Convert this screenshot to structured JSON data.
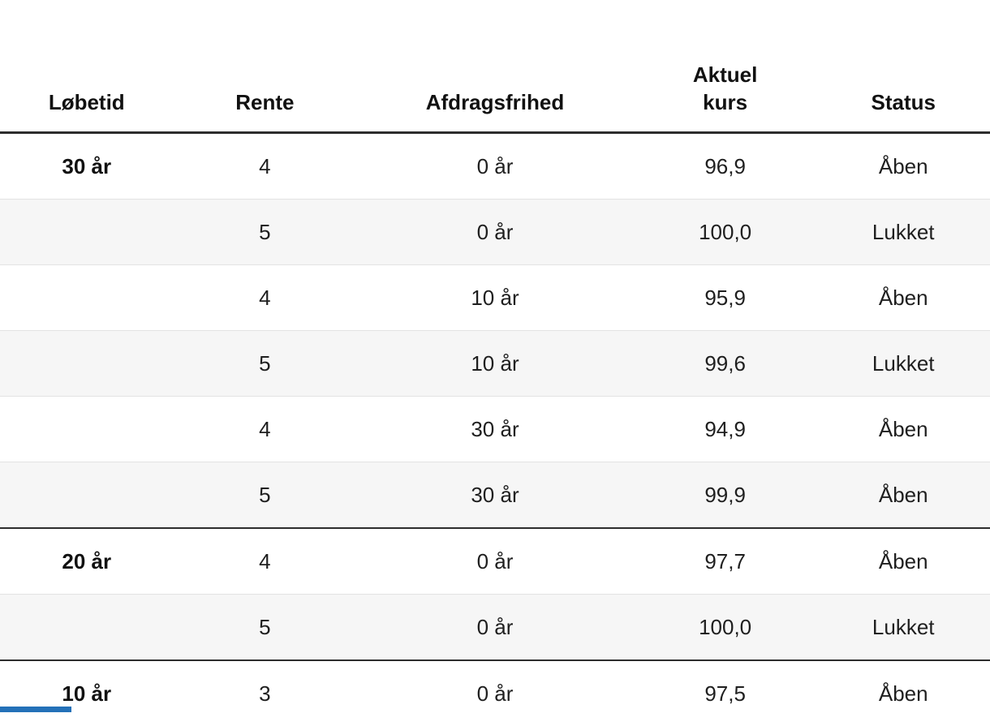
{
  "table": {
    "columns": [
      {
        "key": "lobetid",
        "label": "Løbetid"
      },
      {
        "key": "rente",
        "label": "Rente"
      },
      {
        "key": "afdragsfrihed",
        "label": "Afdragsfrihed"
      },
      {
        "key": "kurs",
        "label": "Aktuel\nkurs"
      },
      {
        "key": "status",
        "label": "Status"
      }
    ],
    "rows": [
      {
        "lobetid": "30 år",
        "rente": "4",
        "afdragsfrihed": "0 år",
        "kurs": "96,9",
        "status": "Åben",
        "group_start": true
      },
      {
        "lobetid": "",
        "rente": "5",
        "afdragsfrihed": "0 år",
        "kurs": "100,0",
        "status": "Lukket",
        "group_start": false
      },
      {
        "lobetid": "",
        "rente": "4",
        "afdragsfrihed": "10 år",
        "kurs": "95,9",
        "status": "Åben",
        "group_start": false
      },
      {
        "lobetid": "",
        "rente": "5",
        "afdragsfrihed": "10 år",
        "kurs": "99,6",
        "status": "Lukket",
        "group_start": false
      },
      {
        "lobetid": "",
        "rente": "4",
        "afdragsfrihed": "30 år",
        "kurs": "94,9",
        "status": "Åben",
        "group_start": false
      },
      {
        "lobetid": "",
        "rente": "5",
        "afdragsfrihed": "30 år",
        "kurs": "99,9",
        "status": "Åben",
        "group_start": false
      },
      {
        "lobetid": "20 år",
        "rente": "4",
        "afdragsfrihed": "0 år",
        "kurs": "97,7",
        "status": "Åben",
        "group_start": true
      },
      {
        "lobetid": "",
        "rente": "5",
        "afdragsfrihed": "0 år",
        "kurs": "100,0",
        "status": "Lukket",
        "group_start": false
      },
      {
        "lobetid": "10 år",
        "rente": "3",
        "afdragsfrihed": "0 år",
        "kurs": "97,5",
        "status": "Åben",
        "group_start": true
      }
    ]
  },
  "colors": {
    "dark_rule": "#2d2d2d",
    "light_rule": "#e3e3e3",
    "zebra_stripe": "#f6f6f6",
    "text": "#1f1f1f",
    "accent_blue": "#2471b8"
  }
}
